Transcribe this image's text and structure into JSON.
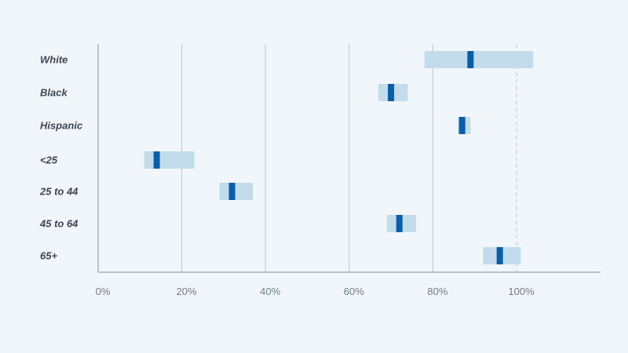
{
  "chart_data": {
    "type": "range",
    "xlim": [
      0,
      120
    ],
    "x_ticks": [
      {
        "value": 0,
        "label": "0%"
      },
      {
        "value": 20,
        "label": "20%"
      },
      {
        "value": 40,
        "label": "40%"
      },
      {
        "value": 60,
        "label": "60%"
      },
      {
        "value": 80,
        "label": "80%"
      },
      {
        "value": 100,
        "label": "100%"
      }
    ],
    "reference_line": 100,
    "grid": true,
    "categories": [
      "White",
      "Black",
      "Hispanic",
      "<25",
      "25 to 44",
      "45 to 64",
      "65+"
    ],
    "series": [
      {
        "values": [
          89,
          70,
          87,
          14,
          32,
          72,
          96
        ],
        "low": [
          78,
          67,
          86,
          11,
          29,
          69,
          92
        ],
        "high": [
          104,
          74,
          89,
          23,
          37,
          76,
          101
        ]
      }
    ],
    "colors": {
      "range": "#c2dcec",
      "point": "#0a5ea6",
      "grid": "#c5ccd3",
      "axis": "#9aa3ab",
      "reference": "#c5ccd3"
    }
  }
}
